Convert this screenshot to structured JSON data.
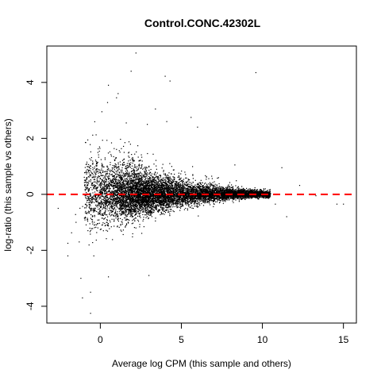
{
  "chart_data": {
    "type": "scatter",
    "title": "Control.CONC.42302L",
    "xlabel": "Average log CPM (this sample and others)",
    "ylabel": "log-ratio (this sample vs others)",
    "xlim": [
      -3.3,
      15.8
    ],
    "ylim": [
      -4.6,
      5.3
    ],
    "x_ticks": [
      0,
      5,
      10,
      15
    ],
    "y_ticks": [
      -4,
      -2,
      0,
      2,
      4
    ],
    "reference_line": {
      "y": 0,
      "style": "dashed",
      "color": "#ff0000"
    },
    "point_color": "#000000",
    "cloud": {
      "description_note": "",
      "x_range": [
        -1.0,
        10.5
      ],
      "spread_at_low_x": 1.4,
      "spread_at_high_x": 0.12,
      "n_points": 9000
    },
    "outliers": [
      [
        2.2,
        5.05
      ],
      [
        1.9,
        4.4
      ],
      [
        4.0,
        4.22
      ],
      [
        9.6,
        4.35
      ],
      [
        4.3,
        4.05
      ],
      [
        0.5,
        3.9
      ],
      [
        1.0,
        3.45
      ],
      [
        1.1,
        3.6
      ],
      [
        3.4,
        3.05
      ],
      [
        5.6,
        2.75
      ],
      [
        4.1,
        2.6
      ],
      [
        0.1,
        2.95
      ],
      [
        2.9,
        2.5
      ],
      [
        1.6,
        2.55
      ],
      [
        6.0,
        2.4
      ],
      [
        -0.9,
        1.85
      ],
      [
        8.3,
        1.05
      ],
      [
        11.2,
        0.95
      ],
      [
        12.3,
        0.32
      ],
      [
        13.3,
        -0.05
      ],
      [
        14.6,
        -0.35
      ],
      [
        15.0,
        -0.35
      ],
      [
        11.5,
        -0.8
      ],
      [
        10.8,
        -0.35
      ],
      [
        -2.6,
        -0.5
      ],
      [
        -2.0,
        -1.75
      ],
      [
        -2.0,
        -2.2
      ],
      [
        -1.3,
        -1.7
      ],
      [
        -1.2,
        -3.0
      ],
      [
        -1.1,
        -3.7
      ],
      [
        -0.6,
        -3.5
      ],
      [
        -0.6,
        -4.25
      ],
      [
        0.5,
        -2.95
      ],
      [
        3.0,
        -2.9
      ],
      [
        2.2,
        -0.85
      ],
      [
        -0.4,
        -2.2
      ],
      [
        -1.5,
        -1.0
      ]
    ]
  }
}
